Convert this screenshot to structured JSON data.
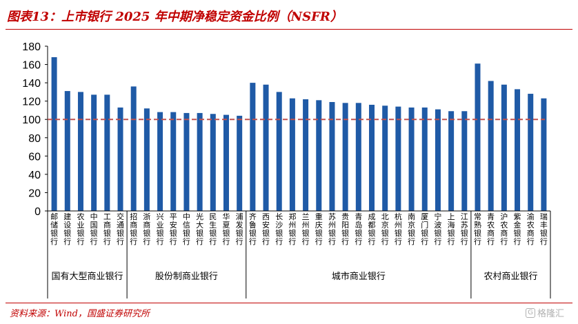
{
  "header": {
    "title": "图表13：上市银行 2025 年中期净稳定资金比例（NSFR）"
  },
  "footer": {
    "source": "资料来源：Wind，国盛证券研究所",
    "watermark": "格隆汇"
  },
  "chart_data": {
    "type": "bar",
    "title": "上市银行 2025 年中期净稳定资金比例（NSFR）",
    "xlabel": "",
    "ylabel": "",
    "ylim": [
      0,
      180
    ],
    "yticks": [
      0,
      20,
      40,
      60,
      80,
      100,
      120,
      140,
      160,
      180
    ],
    "reference_line": 100,
    "bar_color": "#1f5aa6",
    "reference_color": "#c0504d",
    "categories": [
      "邮储银行",
      "建设银行",
      "农业银行",
      "中国银行",
      "工商银行",
      "交通银行",
      "招商银行",
      "浙商银行",
      "兴业银行",
      "平安银行",
      "中信银行",
      "光大银行",
      "民生银行",
      "华夏银行",
      "浦发银行",
      "齐鲁银行",
      "西安银行",
      "长沙银行",
      "郑州银行",
      "兰州银行",
      "重庆银行",
      "苏州银行",
      "贵阳银行",
      "青岛银行",
      "成都银行",
      "北京银行",
      "杭州银行",
      "南京银行",
      "厦门银行",
      "宁波银行",
      "上海银行",
      "江苏银行",
      "常熟银行",
      "青农商行",
      "沪农商行",
      "紫金银行",
      "渝农商行",
      "瑞丰银行"
    ],
    "values": [
      168,
      131,
      130,
      127,
      127,
      113,
      136,
      112,
      108,
      108,
      107,
      107,
      106,
      105,
      104,
      140,
      138,
      130,
      123,
      122,
      121,
      119,
      118,
      118,
      116,
      115,
      114,
      113,
      113,
      111,
      109,
      109,
      161,
      142,
      138,
      133,
      128,
      123
    ],
    "groups": [
      {
        "name": "国有大型商业银行",
        "count": 6
      },
      {
        "name": "股份制商业银行",
        "count": 9
      },
      {
        "name": "城市商业银行",
        "count": 17
      },
      {
        "name": "农村商业银行",
        "count": 6
      }
    ]
  }
}
